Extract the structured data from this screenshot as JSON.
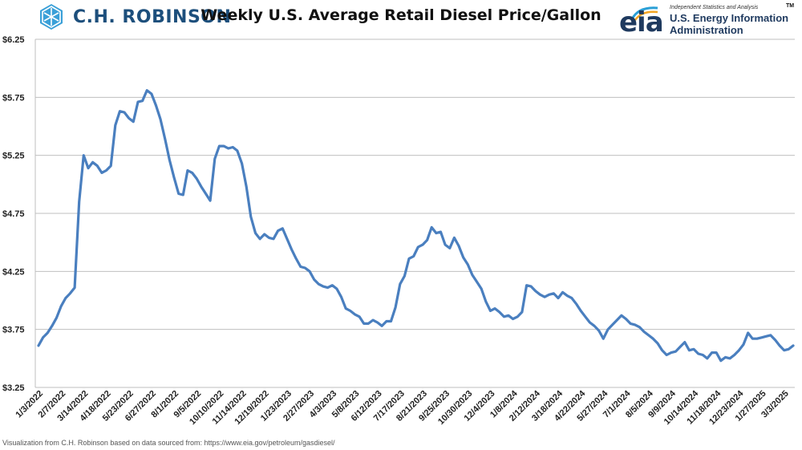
{
  "header": {
    "brand_name": "C.H. ROBINSON",
    "title": "Weekly U.S. Average Retail Diesel Price/Gallon",
    "eia_word": "eia",
    "eia_tagline": "Independent Statistics and Analysis",
    "eia_tm": "TM",
    "eia_line1": "U.S. Energy Information",
    "eia_line2": "Administration"
  },
  "footer": {
    "source_note": "Visualization from C.H. Robinson based on data sourced from: https://www.eia.gov/petroleum/gasdiesel/"
  },
  "colors": {
    "line": "#4a7fbf",
    "grid": "#bfbfbf",
    "brand": "#1d4f7c",
    "eia": "#1f3a5f"
  },
  "chart_data": {
    "type": "line",
    "title": "Weekly U.S. Average Retail Diesel Price/Gallon",
    "xlabel": "",
    "ylabel": "",
    "ylim": [
      3.25,
      6.25
    ],
    "yticks": [
      "$6.25",
      "$5.75",
      "$5.25",
      "$4.75",
      "$4.25",
      "$3.75",
      "$3.25"
    ],
    "ytick_values": [
      6.25,
      5.75,
      5.25,
      4.75,
      4.25,
      3.75,
      3.25
    ],
    "grid": true,
    "x_tick_labels": [
      "1/3/2022",
      "2/7/2022",
      "3/14/2022",
      "4/18/2022",
      "5/23/2022",
      "6/27/2022",
      "8/1/2022",
      "9/5/2022",
      "10/10/2022",
      "11/14/2022",
      "12/19/2022",
      "1/23/2023",
      "2/27/2023",
      "4/3/2023",
      "5/8/2023",
      "6/12/2023",
      "7/17/2023",
      "8/21/2023",
      "9/25/2023",
      "10/30/2023",
      "12/4/2023",
      "1/8/2024",
      "2/12/2024",
      "3/18/2024",
      "4/22/2024",
      "5/27/2024",
      "7/1/2024",
      "8/5/2024",
      "9/9/2024",
      "10/14/2024",
      "11/18/2024",
      "12/23/2024",
      "1/27/2025",
      "3/3/2025"
    ],
    "series": [
      {
        "name": "Diesel Price",
        "values": [
          3.61,
          3.68,
          3.72,
          3.78,
          3.85,
          3.95,
          4.02,
          4.06,
          4.11,
          4.85,
          5.25,
          5.14,
          5.19,
          5.16,
          5.1,
          5.12,
          5.16,
          5.51,
          5.63,
          5.62,
          5.57,
          5.54,
          5.71,
          5.72,
          5.81,
          5.78,
          5.68,
          5.56,
          5.39,
          5.21,
          5.06,
          4.92,
          4.91,
          5.12,
          5.1,
          5.05,
          4.98,
          4.92,
          4.86,
          5.22,
          5.33,
          5.33,
          5.31,
          5.32,
          5.29,
          5.18,
          4.98,
          4.72,
          4.58,
          4.53,
          4.57,
          4.54,
          4.53,
          4.6,
          4.62,
          4.53,
          4.44,
          4.36,
          4.29,
          4.28,
          4.25,
          4.18,
          4.14,
          4.12,
          4.11,
          4.13,
          4.1,
          4.03,
          3.93,
          3.91,
          3.88,
          3.86,
          3.8,
          3.8,
          3.83,
          3.81,
          3.78,
          3.82,
          3.82,
          3.94,
          4.14,
          4.21,
          4.36,
          4.38,
          4.46,
          4.48,
          4.52,
          4.63,
          4.58,
          4.59,
          4.48,
          4.45,
          4.54,
          4.47,
          4.37,
          4.31,
          4.22,
          4.16,
          4.1,
          3.99,
          3.91,
          3.93,
          3.9,
          3.86,
          3.87,
          3.84,
          3.86,
          3.9,
          4.13,
          4.12,
          4.08,
          4.05,
          4.03,
          4.05,
          4.06,
          4.02,
          4.07,
          4.04,
          4.02,
          3.97,
          3.91,
          3.86,
          3.81,
          3.78,
          3.74,
          3.67,
          3.75,
          3.79,
          3.83,
          3.87,
          3.84,
          3.8,
          3.79,
          3.77,
          3.73,
          3.7,
          3.67,
          3.63,
          3.57,
          3.53,
          3.55,
          3.56,
          3.6,
          3.64,
          3.57,
          3.58,
          3.54,
          3.53,
          3.5,
          3.55,
          3.55,
          3.48,
          3.51,
          3.5,
          3.53,
          3.57,
          3.62,
          3.72,
          3.67,
          3.67,
          3.68,
          3.69,
          3.7,
          3.66,
          3.61,
          3.57,
          3.58,
          3.61
        ]
      }
    ]
  }
}
